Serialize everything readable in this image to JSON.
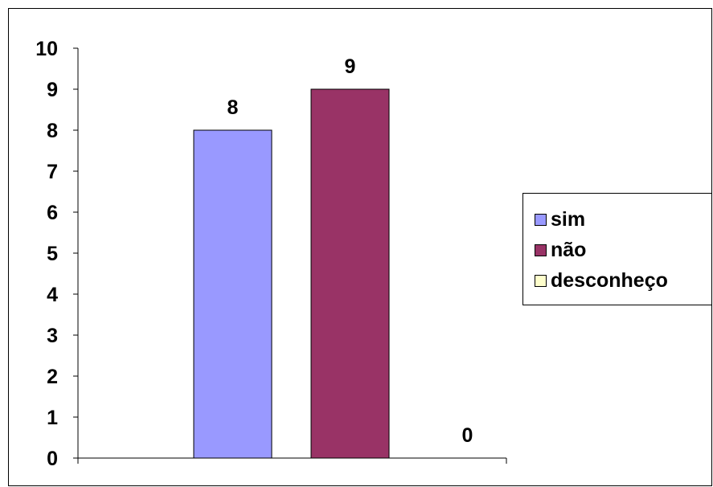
{
  "chart_data": {
    "type": "bar",
    "categories": [
      "sim",
      "não",
      "desconheço"
    ],
    "values": [
      8,
      9,
      0
    ],
    "data_labels": [
      "8",
      "9",
      "0"
    ],
    "colors": [
      "#9999ff",
      "#993366",
      "#ffffcc"
    ],
    "yticks": [
      "0",
      "1",
      "2",
      "3",
      "4",
      "5",
      "6",
      "7",
      "8",
      "9",
      "10"
    ],
    "ylim": [
      0,
      10
    ],
    "title": "",
    "xlabel": "",
    "ylabel": "",
    "grid": false,
    "legend_position": "right"
  },
  "legend": {
    "items": [
      {
        "label": "sim",
        "color": "#9999ff"
      },
      {
        "label": "não",
        "color": "#993366"
      },
      {
        "label": "desconheço",
        "color": "#ffffcc"
      }
    ]
  }
}
